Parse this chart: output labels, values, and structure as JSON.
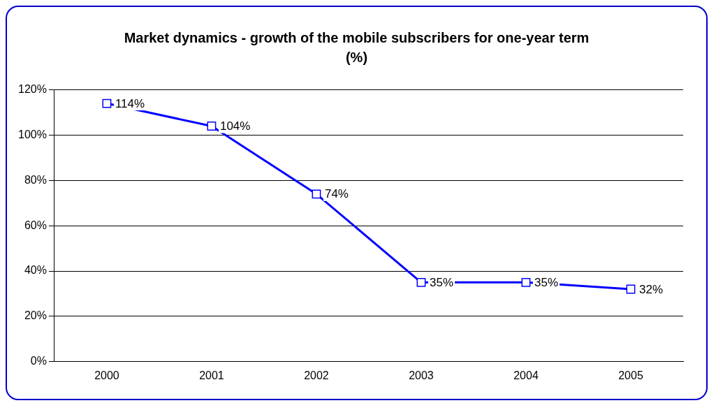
{
  "chart_data": {
    "type": "line",
    "title": "Market dynamics - growth of the mobile subscribers for one-year term (%)",
    "categories": [
      "2000",
      "2001",
      "2002",
      "2003",
      "2004",
      "2005"
    ],
    "series": [
      {
        "color": "#0000ff",
        "values": [
          114,
          104,
          74,
          35,
          35,
          32
        ],
        "value_labels": [
          "114%",
          "104%",
          "74%",
          "35%",
          "35%",
          "32%"
        ]
      }
    ],
    "ylim": [
      0,
      120
    ],
    "yticks": [
      {
        "value": 0,
        "label": "0%"
      },
      {
        "value": 20,
        "label": "20%"
      },
      {
        "value": 40,
        "label": "40%"
      },
      {
        "value": 60,
        "label": "60%"
      },
      {
        "value": 80,
        "label": "80%"
      },
      {
        "value": 100,
        "label": "100%"
      },
      {
        "value": 120,
        "label": "120%"
      }
    ],
    "grid": "y",
    "legend": false,
    "marker": "square",
    "line_style": "solid"
  }
}
